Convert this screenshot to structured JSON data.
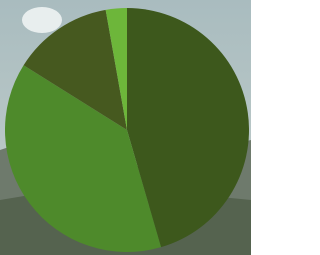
{
  "chart_data": {
    "type": "pie",
    "values": [
      45.5,
      38.4,
      13.3,
      2.8
    ],
    "colors": [
      "#3d581c",
      "#4e8a2b",
      "#46591f",
      "#6db63a"
    ]
  }
}
